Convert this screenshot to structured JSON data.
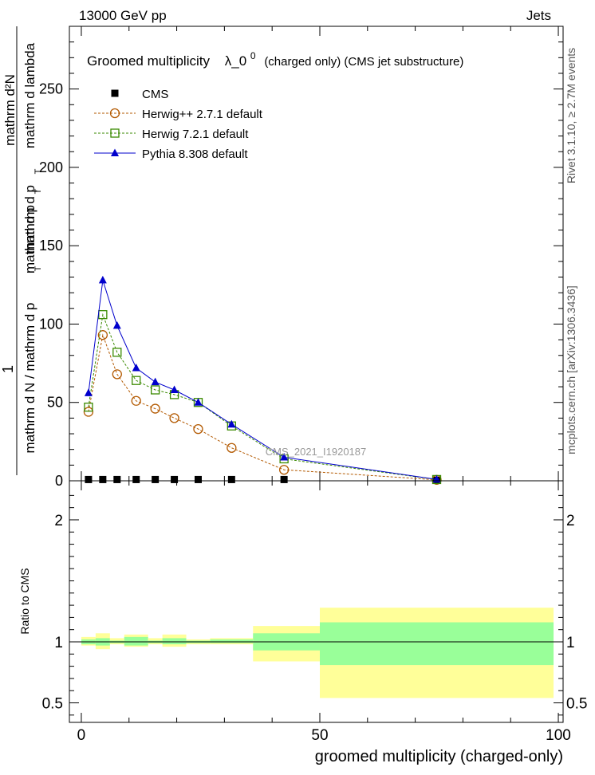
{
  "header": {
    "left": "13000 GeV pp",
    "right": "Jets"
  },
  "side": {
    "rivet": "Rivet 3.1.10, ≥ 2.7M events",
    "mcplots": "mcplots.cern.ch [arXiv:1306.3436]"
  },
  "watermark": "CMS_2021_I1920187",
  "chart_data": [
    {
      "type": "line",
      "panel": "main",
      "title": "Groomed multiplicity",
      "title_symbol": "λ_0",
      "title_superscript": "0",
      "title_suffix": "(charged only) (CMS jet substructure)",
      "ylabel": {
        "prefix": "1",
        "main": "mathrm d N / mathrm d p_T mathrm d p_T mathrm d lambda",
        "lines": [
          "mathrm d²N",
          "mathrm d p",
          "T",
          "mathrm d lambda",
          "mathrm d N / mathrm d p",
          "T",
          "mathrm d p",
          "T"
        ]
      },
      "xlim": [
        -2.5,
        101
      ],
      "ylim": [
        0,
        290
      ],
      "yticks": [
        "0",
        "50",
        "100",
        "150",
        "200",
        "250"
      ],
      "ytick_values": [
        0,
        50,
        100,
        150,
        200,
        250
      ],
      "legend_position": "top-left",
      "series": [
        {
          "name": "CMS",
          "marker": "square-filled",
          "color": "#000000",
          "x": [
            1.5,
            4.5,
            7.5,
            11.5,
            15.5,
            19.5,
            24.5,
            31.5,
            42.5,
            74.5
          ],
          "y": [
            0.8,
            0.8,
            0.8,
            0.8,
            0.8,
            0.8,
            0.8,
            0.8,
            0.8,
            0.3
          ]
        },
        {
          "name": "Herwig++ 2.7.1 default",
          "marker": "circle-open",
          "line": "dashed",
          "color": "#b35900",
          "x": [
            1.5,
            4.5,
            7.5,
            11.5,
            15.5,
            19.5,
            24.5,
            31.5,
            42.5,
            74.5
          ],
          "y": [
            44,
            93,
            68,
            51,
            46,
            40,
            33,
            21,
            7,
            0.6
          ]
        },
        {
          "name": "Herwig 7.2.1 default",
          "marker": "square-open",
          "line": "dashed",
          "color": "#3a8a00",
          "x": [
            1.5,
            4.5,
            7.5,
            11.5,
            15.5,
            19.5,
            24.5,
            31.5,
            42.5,
            74.5
          ],
          "y": [
            47,
            106,
            82,
            64,
            58,
            55,
            50,
            35,
            14,
            0.8
          ]
        },
        {
          "name": "Pythia 8.308 default",
          "marker": "triangle-filled",
          "line": "solid",
          "color": "#0000cc",
          "x": [
            1.5,
            4.5,
            7.5,
            11.5,
            15.5,
            19.5,
            24.5,
            31.5,
            42.5,
            74.5
          ],
          "y": [
            56,
            128,
            99,
            72,
            63,
            58,
            50,
            36,
            15,
            0.9
          ]
        }
      ]
    },
    {
      "type": "area",
      "panel": "ratio",
      "ylabel": "Ratio to CMS",
      "xlabel": "groomed multiplicity (charged-only)",
      "xlim": [
        -2.5,
        101
      ],
      "ylim": [
        0.34,
        2.32
      ],
      "yticks": [
        "0.5",
        "1",
        "2"
      ],
      "ytick_values": [
        0.5,
        1,
        2
      ],
      "xticks": [
        "0",
        "50",
        "100"
      ],
      "xtick_values": [
        0,
        50,
        100
      ],
      "bands": {
        "colors": {
          "stat": "#99ff99",
          "total": "#ffff99"
        },
        "bins": [
          {
            "x0": 0,
            "x1": 3,
            "stat": [
              0.98,
              1.02
            ],
            "total": [
              0.97,
              1.04
            ]
          },
          {
            "x0": 3,
            "x1": 6,
            "stat": [
              0.97,
              1.03
            ],
            "total": [
              0.94,
              1.07
            ]
          },
          {
            "x0": 6,
            "x1": 9,
            "stat": [
              0.99,
              1.01
            ],
            "total": [
              0.98,
              1.03
            ]
          },
          {
            "x0": 9,
            "x1": 14,
            "stat": [
              0.97,
              1.04
            ],
            "total": [
              0.96,
              1.06
            ]
          },
          {
            "x0": 14,
            "x1": 17,
            "stat": [
              0.99,
              1.01
            ],
            "total": [
              0.98,
              1.03
            ]
          },
          {
            "x0": 17,
            "x1": 22,
            "stat": [
              0.98,
              1.03
            ],
            "total": [
              0.96,
              1.06
            ]
          },
          {
            "x0": 22,
            "x1": 27,
            "stat": [
              0.99,
              1.01
            ],
            "total": [
              0.98,
              1.02
            ]
          },
          {
            "x0": 27,
            "x1": 36,
            "stat": [
              0.99,
              1.02
            ],
            "total": [
              0.98,
              1.03
            ]
          },
          {
            "x0": 36,
            "x1": 50,
            "stat": [
              0.93,
              1.07
            ],
            "total": [
              0.84,
              1.13
            ]
          },
          {
            "x0": 50,
            "x1": 99,
            "stat": [
              0.81,
              1.16
            ],
            "total": [
              0.54,
              1.28
            ]
          }
        ]
      }
    }
  ]
}
